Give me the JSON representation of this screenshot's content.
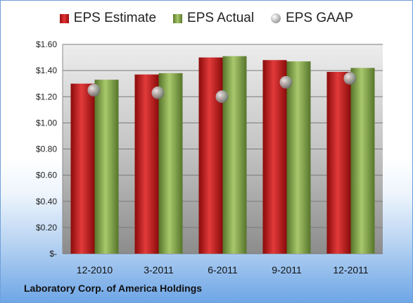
{
  "chart_data": {
    "type": "bar",
    "categories": [
      "12-2010",
      "3-2011",
      "6-2011",
      "9-2011",
      "12-2011"
    ],
    "series": [
      {
        "name": "EPS Estimate",
        "type": "bar",
        "values": [
          1.3,
          1.37,
          1.5,
          1.48,
          1.39
        ]
      },
      {
        "name": "EPS Actual",
        "type": "bar",
        "values": [
          1.33,
          1.38,
          1.51,
          1.47,
          1.42
        ]
      },
      {
        "name": "EPS GAAP",
        "type": "scatter",
        "values": [
          1.25,
          1.23,
          1.2,
          1.31,
          1.34
        ]
      }
    ],
    "y_ticks": [
      "$-",
      "$0.20",
      "$0.40",
      "$0.60",
      "$0.80",
      "$1.00",
      "$1.20",
      "$1.40",
      "$1.60"
    ],
    "ylim": [
      0,
      1.6
    ],
    "legend_position": "top",
    "grid": true,
    "colors": {
      "estimate": "#c41e1e",
      "actual": "#86a845",
      "gaap": "#a5a5a5"
    }
  },
  "footer": "Laboratory Corp. of America Holdings"
}
